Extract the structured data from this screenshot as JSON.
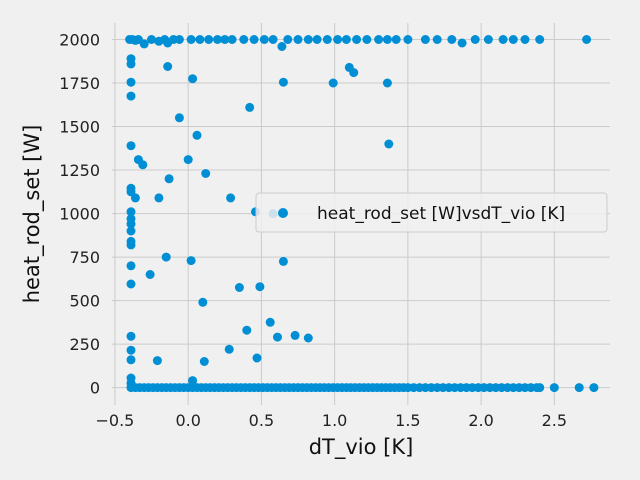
{
  "chart_data": {
    "type": "scatter",
    "title": "",
    "xlabel": "dT_vio [K]",
    "ylabel": "heat_rod_set [W]",
    "xlim": [
      -0.52,
      2.88
    ],
    "ylim": [
      -100,
      2095
    ],
    "xticks": [
      -0.5,
      0.0,
      0.5,
      1.0,
      1.5,
      2.0,
      2.5
    ],
    "xtick_labels": [
      "−0.5",
      "0.0",
      "0.5",
      "1.0",
      "1.5",
      "2.0",
      "2.5"
    ],
    "yticks": [
      0,
      250,
      500,
      750,
      1000,
      1250,
      1500,
      1750,
      2000
    ],
    "ytick_labels": [
      "0",
      "250",
      "500",
      "750",
      "1000",
      "1250",
      "1500",
      "1750",
      "2000"
    ],
    "grid": true,
    "legend_position": "center-right",
    "series": [
      {
        "name": "heat_rod_set [W]vsdT_vio [K]",
        "color": "#008fd5",
        "points": [
          [
            -0.4,
            2000
          ],
          [
            -0.38,
            2000
          ],
          [
            -0.36,
            1995
          ],
          [
            -0.34,
            2000
          ],
          [
            -0.3,
            1975
          ],
          [
            -0.25,
            2000
          ],
          [
            -0.2,
            1990
          ],
          [
            -0.16,
            2000
          ],
          [
            -0.14,
            1980
          ],
          [
            -0.1,
            2000
          ],
          [
            -0.06,
            2000
          ],
          [
            0.02,
            2000
          ],
          [
            0.08,
            2000
          ],
          [
            0.14,
            2000
          ],
          [
            0.2,
            2000
          ],
          [
            0.25,
            2000
          ],
          [
            0.3,
            2000
          ],
          [
            0.38,
            2000
          ],
          [
            0.45,
            2000
          ],
          [
            0.52,
            2000
          ],
          [
            0.58,
            2000
          ],
          [
            0.64,
            1960
          ],
          [
            0.68,
            2000
          ],
          [
            0.75,
            2000
          ],
          [
            0.82,
            2000
          ],
          [
            0.88,
            2000
          ],
          [
            0.95,
            2000
          ],
          [
            1.02,
            2000
          ],
          [
            1.08,
            2000
          ],
          [
            1.15,
            2000
          ],
          [
            1.22,
            2000
          ],
          [
            1.3,
            2000
          ],
          [
            1.36,
            2000
          ],
          [
            1.42,
            2000
          ],
          [
            1.5,
            2000
          ],
          [
            1.62,
            2000
          ],
          [
            1.7,
            2000
          ],
          [
            1.8,
            2000
          ],
          [
            1.87,
            1980
          ],
          [
            1.96,
            2000
          ],
          [
            2.05,
            2000
          ],
          [
            2.15,
            2000
          ],
          [
            2.22,
            2000
          ],
          [
            2.3,
            2000
          ],
          [
            2.4,
            2000
          ],
          [
            2.72,
            2000
          ],
          [
            -0.39,
            1890
          ],
          [
            -0.39,
            1860
          ],
          [
            -0.39,
            1755
          ],
          [
            -0.39,
            1675
          ],
          [
            -0.14,
            1845
          ],
          [
            0.03,
            1775
          ],
          [
            0.65,
            1755
          ],
          [
            1.1,
            1840
          ],
          [
            1.13,
            1810
          ],
          [
            0.99,
            1750
          ],
          [
            1.36,
            1750
          ],
          [
            0.42,
            1610
          ],
          [
            -0.06,
            1550
          ],
          [
            0.06,
            1450
          ],
          [
            1.37,
            1400
          ],
          [
            -0.39,
            1390
          ],
          [
            -0.34,
            1310
          ],
          [
            -0.31,
            1280
          ],
          [
            0.0,
            1310
          ],
          [
            0.12,
            1230
          ],
          [
            -0.13,
            1200
          ],
          [
            -0.39,
            1145
          ],
          [
            -0.39,
            1125
          ],
          [
            -0.36,
            1090
          ],
          [
            -0.2,
            1090
          ],
          [
            0.29,
            1090
          ],
          [
            0.46,
            1010
          ],
          [
            0.58,
            1000
          ],
          [
            -0.39,
            1010
          ],
          [
            -0.39,
            970
          ],
          [
            -0.39,
            940
          ],
          [
            -0.39,
            900
          ],
          [
            -0.39,
            840
          ],
          [
            -0.39,
            820
          ],
          [
            -0.15,
            750
          ],
          [
            0.02,
            730
          ],
          [
            0.65,
            725
          ],
          [
            -0.39,
            700
          ],
          [
            -0.26,
            650
          ],
          [
            -0.39,
            595
          ],
          [
            0.35,
            575
          ],
          [
            0.49,
            580
          ],
          [
            0.1,
            490
          ],
          [
            0.56,
            375
          ],
          [
            0.4,
            330
          ],
          [
            -0.39,
            295
          ],
          [
            0.61,
            290
          ],
          [
            0.73,
            300
          ],
          [
            0.82,
            285
          ],
          [
            -0.39,
            215
          ],
          [
            0.28,
            220
          ],
          [
            -0.39,
            160
          ],
          [
            -0.21,
            155
          ],
          [
            0.11,
            150
          ],
          [
            0.47,
            170
          ],
          [
            -0.39,
            55
          ],
          [
            -0.39,
            25
          ],
          [
            0.03,
            40
          ],
          [
            -0.39,
            0
          ],
          [
            -0.36,
            0
          ],
          [
            -0.33,
            0
          ],
          [
            -0.3,
            0
          ],
          [
            -0.27,
            0
          ],
          [
            -0.24,
            0
          ],
          [
            -0.21,
            0
          ],
          [
            -0.18,
            0
          ],
          [
            -0.15,
            0
          ],
          [
            -0.12,
            0
          ],
          [
            -0.09,
            0
          ],
          [
            -0.06,
            0
          ],
          [
            -0.03,
            0
          ],
          [
            0.0,
            0
          ],
          [
            0.03,
            0
          ],
          [
            0.06,
            0
          ],
          [
            0.09,
            0
          ],
          [
            0.12,
            0
          ],
          [
            0.15,
            0
          ],
          [
            0.18,
            0
          ],
          [
            0.21,
            0
          ],
          [
            0.24,
            0
          ],
          [
            0.27,
            0
          ],
          [
            0.3,
            0
          ],
          [
            0.33,
            0
          ],
          [
            0.36,
            0
          ],
          [
            0.39,
            0
          ],
          [
            0.42,
            0
          ],
          [
            0.45,
            0
          ],
          [
            0.48,
            0
          ],
          [
            0.51,
            0
          ],
          [
            0.54,
            0
          ],
          [
            0.57,
            0
          ],
          [
            0.6,
            0
          ],
          [
            0.63,
            0
          ],
          [
            0.66,
            0
          ],
          [
            0.69,
            0
          ],
          [
            0.72,
            0
          ],
          [
            0.75,
            0
          ],
          [
            0.78,
            0
          ],
          [
            0.81,
            0
          ],
          [
            0.84,
            0
          ],
          [
            0.87,
            0
          ],
          [
            0.9,
            0
          ],
          [
            0.93,
            0
          ],
          [
            0.96,
            0
          ],
          [
            0.99,
            0
          ],
          [
            1.02,
            0
          ],
          [
            1.05,
            0
          ],
          [
            1.08,
            0
          ],
          [
            1.11,
            0
          ],
          [
            1.14,
            0
          ],
          [
            1.17,
            0
          ],
          [
            1.2,
            0
          ],
          [
            1.23,
            0
          ],
          [
            1.26,
            0
          ],
          [
            1.29,
            0
          ],
          [
            1.32,
            0
          ],
          [
            1.35,
            0
          ],
          [
            1.38,
            0
          ],
          [
            1.41,
            0
          ],
          [
            1.44,
            0
          ],
          [
            1.47,
            0
          ],
          [
            1.5,
            0
          ],
          [
            1.54,
            0
          ],
          [
            1.58,
            0
          ],
          [
            1.62,
            0
          ],
          [
            1.66,
            0
          ],
          [
            1.7,
            0
          ],
          [
            1.74,
            0
          ],
          [
            1.78,
            0
          ],
          [
            1.82,
            0
          ],
          [
            1.86,
            0
          ],
          [
            1.9,
            0
          ],
          [
            1.94,
            0
          ],
          [
            1.98,
            0
          ],
          [
            2.02,
            0
          ],
          [
            2.06,
            0
          ],
          [
            2.1,
            0
          ],
          [
            2.14,
            0
          ],
          [
            2.18,
            0
          ],
          [
            2.22,
            0
          ],
          [
            2.26,
            0
          ],
          [
            2.3,
            0
          ],
          [
            2.34,
            0
          ],
          [
            2.38,
            0
          ],
          [
            2.4,
            0
          ],
          [
            2.5,
            0
          ],
          [
            2.67,
            0
          ],
          [
            2.77,
            0
          ]
        ]
      }
    ]
  }
}
